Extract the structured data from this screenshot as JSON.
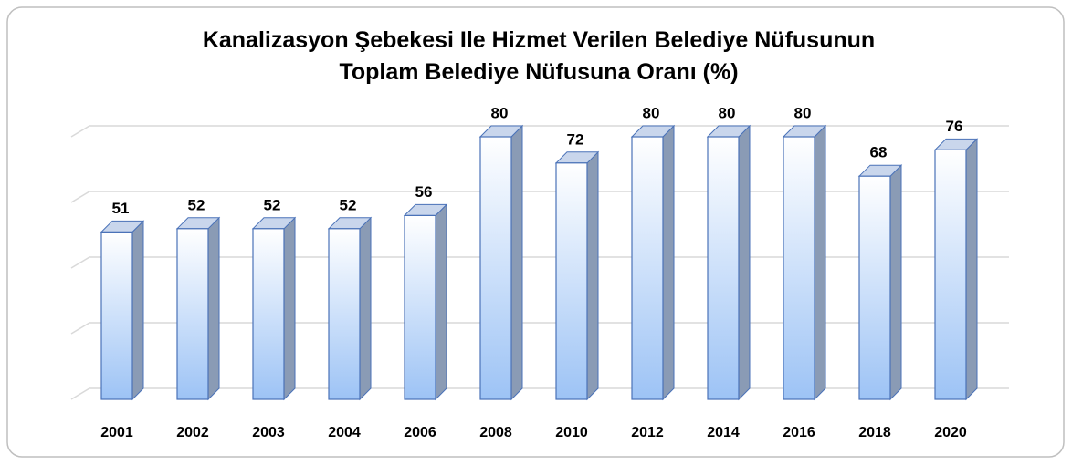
{
  "chart_data": {
    "type": "bar3d",
    "title": "Kanalizasyon Şebekesi Ile Hizmet Verilen Belediye Nüfusunun\nToplam Belediye Nüfusuna Oranı (%)",
    "categories": [
      "2001",
      "2002",
      "2003",
      "2004",
      "2006",
      "2008",
      "2010",
      "2012",
      "2014",
      "2016",
      "2018",
      "2020"
    ],
    "values": [
      51,
      52,
      52,
      52,
      56,
      80,
      72,
      80,
      80,
      80,
      68,
      76
    ],
    "color": "#9dc3f5",
    "ylim": [
      0,
      80
    ],
    "yticks": [
      0,
      20,
      40,
      60,
      80
    ],
    "grid": true
  }
}
